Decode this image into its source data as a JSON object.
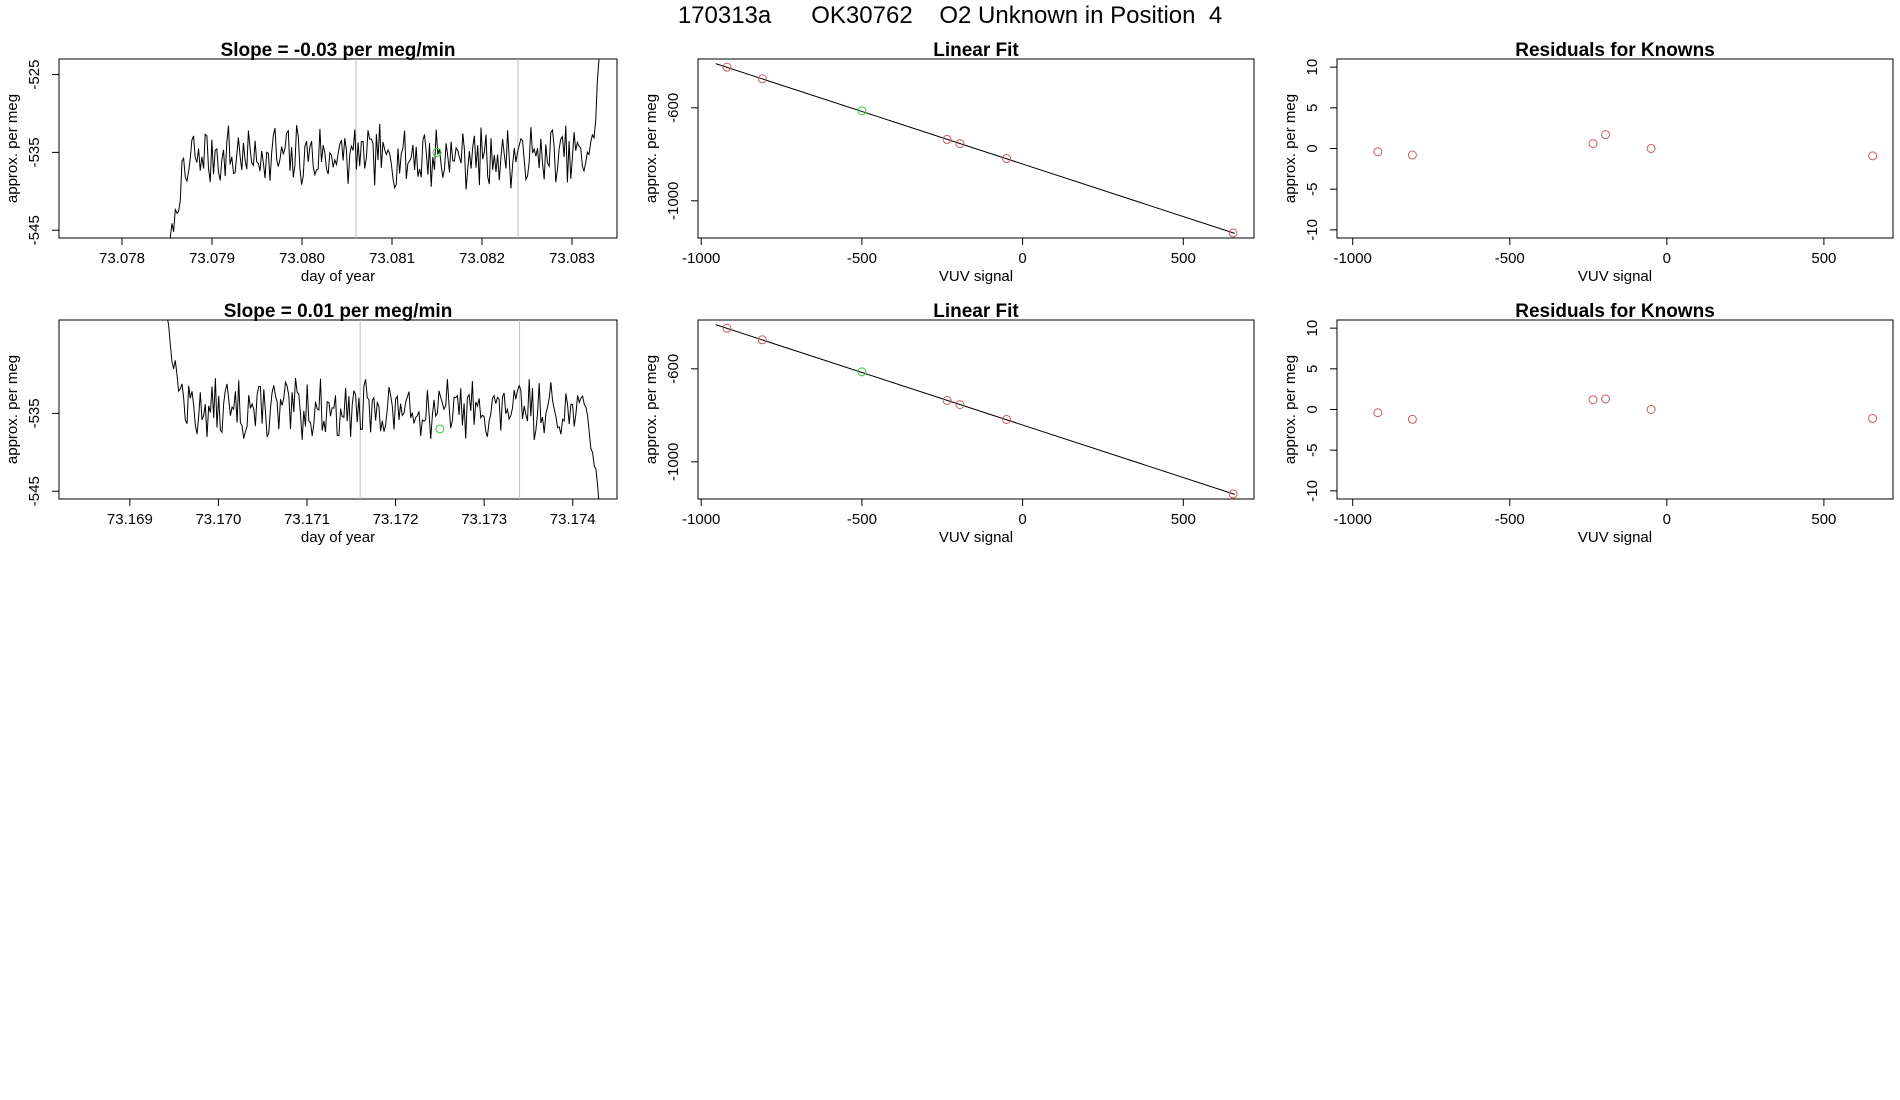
{
  "page": {
    "title": "170313a      OK30762    O2 Unknown in Position  4"
  },
  "colors": {
    "axis": "#000000",
    "line": "#000000",
    "known_points": "#cd5c5c",
    "unknown_point": "#32cd32",
    "vertical_markers": "#bebebe"
  },
  "chart_data": [
    {
      "type": "line",
      "title": "Slope =  -0.03  per meg/min",
      "xlabel": "day of year",
      "ylabel": "approx. per meg",
      "xlim": [
        73.0773,
        73.0835
      ],
      "ylim": [
        -546,
        -523
      ],
      "xticks": [
        73.078,
        73.079,
        73.08,
        73.081,
        73.082,
        73.083
      ],
      "xtick_labels": [
        "73.078",
        "73.079",
        "73.080",
        "73.081",
        "73.082",
        "73.083"
      ],
      "yticks": [
        -525,
        -535,
        -545
      ],
      "ytick_labels": [
        "-525",
        "-535",
        "-545"
      ],
      "vlines": [
        73.0806,
        73.0824
      ],
      "marker": {
        "x": 73.0815,
        "y": -535
      },
      "series": [
        {
          "x_start": 73.0785,
          "x_end": 73.0833,
          "n": 260,
          "base": -535.5,
          "amp": 3.2,
          "seed": 7,
          "start_drop": {
            "from": -549,
            "len": 0.00035
          },
          "end_rise": {
            "to": -523,
            "len": 0.00012
          }
        }
      ]
    },
    {
      "type": "scatter",
      "title": "Linear Fit",
      "xlabel": "VUV signal",
      "ylabel": "approx. per meg",
      "xlim": [
        -1010,
        720
      ],
      "ylim": [
        -1160,
        -390
      ],
      "xticks": [
        -1000,
        -500,
        0,
        500
      ],
      "xtick_labels": [
        "-1000",
        "-500",
        "0",
        "500"
      ],
      "yticks": [
        -600,
        -1000
      ],
      "ytick_labels": [
        "-600",
        "-1000"
      ],
      "fit_line": [
        [
          -955,
          -410
        ],
        [
          660,
          -1140
        ]
      ],
      "points_known": [
        [
          -920,
          -425
        ],
        [
          -810,
          -475
        ],
        [
          -235,
          -736
        ],
        [
          -195,
          -754
        ],
        [
          -50,
          -818
        ],
        [
          655,
          -1138
        ]
      ],
      "points_unknown": [
        [
          -500,
          -613
        ]
      ]
    },
    {
      "type": "scatter",
      "title": "Residuals for Knowns",
      "xlabel": "VUV signal",
      "ylabel": "approx. per meg",
      "xlim": [
        -1050,
        720
      ],
      "ylim": [
        -11,
        11
      ],
      "xticks": [
        -1000,
        -500,
        0,
        500
      ],
      "xtick_labels": [
        "-1000",
        "-500",
        "0",
        "500"
      ],
      "yticks": [
        10,
        5,
        0,
        -5,
        -10
      ],
      "ytick_labels": [
        "10",
        "5",
        "0",
        "-5",
        "-10"
      ],
      "points_known": [
        [
          -920,
          -0.4
        ],
        [
          -810,
          -0.8
        ],
        [
          -235,
          0.6
        ],
        [
          -195,
          1.7
        ],
        [
          -50,
          0.0
        ],
        [
          655,
          -0.9
        ]
      ]
    },
    {
      "type": "line",
      "title": "Slope =  0.01  per meg/min",
      "xlabel": "day of year",
      "ylabel": "approx. per meg",
      "xlim": [
        73.1682,
        73.1745
      ],
      "ylim": [
        -546,
        -523
      ],
      "xticks": [
        73.169,
        73.17,
        73.171,
        73.172,
        73.173,
        73.174
      ],
      "xtick_labels": [
        "73.169",
        "73.170",
        "73.171",
        "73.172",
        "73.173",
        "73.174"
      ],
      "yticks": [
        -535,
        -545
      ],
      "ytick_labels": [
        "-535",
        "-545"
      ],
      "vlines": [
        73.1716,
        73.1734
      ],
      "marker": {
        "x": 73.1725,
        "y": -537
      },
      "series": [
        {
          "x_start": 73.1694,
          "x_end": 73.1743,
          "n": 260,
          "base": -534.5,
          "amp": 3.0,
          "seed": 13,
          "start_drop": {
            "from": -521,
            "len": 0.0003
          },
          "end_rise": {
            "to": -547,
            "len": 0.0002
          }
        }
      ]
    },
    {
      "type": "scatter",
      "title": "Linear Fit",
      "xlabel": "VUV signal",
      "ylabel": "approx. per meg",
      "xlim": [
        -1010,
        720
      ],
      "ylim": [
        -1160,
        -390
      ],
      "xticks": [
        -1000,
        -500,
        0,
        500
      ],
      "xtick_labels": [
        "-1000",
        "-500",
        "0",
        "500"
      ],
      "yticks": [
        -600,
        -1000
      ],
      "ytick_labels": [
        "-600",
        "-1000"
      ],
      "fit_line": [
        [
          -955,
          -410
        ],
        [
          660,
          -1140
        ]
      ],
      "points_known": [
        [
          -920,
          -425
        ],
        [
          -810,
          -475
        ],
        [
          -235,
          -736
        ],
        [
          -195,
          -754
        ],
        [
          -50,
          -818
        ],
        [
          655,
          -1138
        ]
      ],
      "points_unknown": [
        [
          -500,
          -613
        ]
      ]
    },
    {
      "type": "scatter",
      "title": "Residuals for Knowns",
      "xlabel": "VUV signal",
      "ylabel": "approx. per meg",
      "xlim": [
        -1050,
        720
      ],
      "ylim": [
        -11,
        11
      ],
      "xticks": [
        -1000,
        -500,
        0,
        500
      ],
      "xtick_labels": [
        "-1000",
        "-500",
        "0",
        "500"
      ],
      "yticks": [
        10,
        5,
        0,
        -5,
        -10
      ],
      "ytick_labels": [
        "10",
        "5",
        "0",
        "-5",
        "-10"
      ],
      "points_known": [
        [
          -920,
          -0.4
        ],
        [
          -810,
          -1.2
        ],
        [
          -235,
          1.2
        ],
        [
          -195,
          1.3
        ],
        [
          -50,
          0.0
        ],
        [
          655,
          -1.1
        ]
      ]
    }
  ]
}
